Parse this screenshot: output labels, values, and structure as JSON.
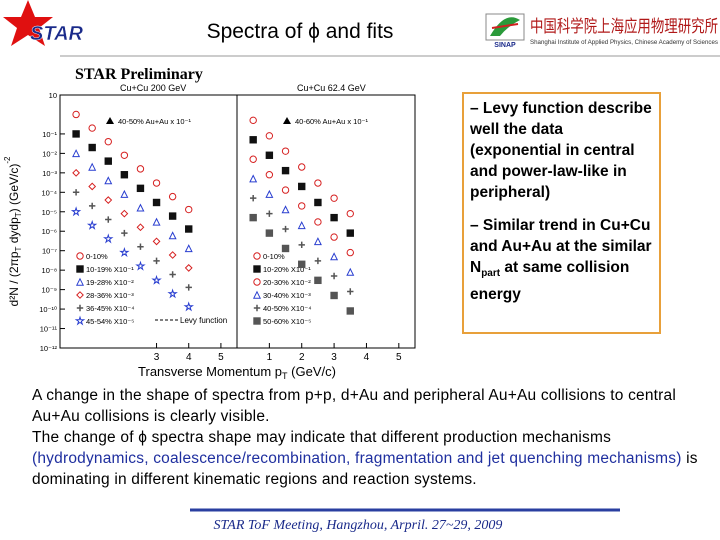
{
  "header": {
    "logo_text": "STAR",
    "title": "Spectra of ϕ and fits",
    "institute_cn": "中国科学院上海应用物理研究所",
    "institute_en": "Shanghai Institute of Applied Physics, Chinese Academy of Sciences",
    "institute_abbr": "SINAP"
  },
  "preliminary": "STAR Preliminary",
  "chart_data": [
    {
      "type": "scatter",
      "title": "Cu+Cu 200 GeV",
      "y_label_parts": [
        "d²N / (2πp",
        "T",
        " dydp",
        "T",
        ") (GeV/c)",
        "-2"
      ],
      "annotation": "40-50% Au+Au x 10⁻¹",
      "fit_label": "Levy function",
      "x": [
        0.5,
        1,
        1.5,
        2,
        2.5,
        3,
        3.5,
        4
      ],
      "series": [
        {
          "name": "0-10%",
          "color": "#d62020",
          "marker": "circle",
          "values": [
            1,
            0.2,
            0.04,
            0.008,
            0.0016,
            0.0003,
            6e-05,
            1.3e-05
          ]
        },
        {
          "name": "10-19% X10⁻¹",
          "color": "#111111",
          "marker": "square",
          "values": [
            0.1,
            0.02,
            0.004,
            0.0008,
            0.00016,
            3e-05,
            6e-06,
            1.3e-06
          ]
        },
        {
          "name": "19-28% X10⁻²",
          "color": "#2a3fd0",
          "marker": "triangle",
          "values": [
            0.01,
            0.002,
            0.0004,
            8e-05,
            1.6e-05,
            3e-06,
            6e-07,
            1.3e-07
          ]
        },
        {
          "name": "28-36% X10⁻³",
          "color": "#d62020",
          "marker": "diamond",
          "values": [
            0.001,
            0.0002,
            4e-05,
            8e-06,
            1.6e-06,
            3e-07,
            6e-08,
            1.3e-08
          ]
        },
        {
          "name": "36-45% X10⁻⁴",
          "color": "#555555",
          "marker": "cross",
          "values": [
            0.0001,
            2e-05,
            4e-06,
            8e-07,
            1.6e-07,
            3e-08,
            6e-09,
            1.3e-09
          ]
        },
        {
          "name": "45-54% X10⁻⁵",
          "color": "#2a3fd0",
          "marker": "star",
          "values": [
            1e-05,
            2e-06,
            4e-07,
            8e-08,
            1.6e-08,
            3e-09,
            6e-10,
            1.3e-10
          ]
        }
      ],
      "xlim": [
        0,
        5.5
      ],
      "xticks": [
        3,
        4,
        5
      ],
      "log_y": true,
      "ylim": [
        1e-12,
        10
      ],
      "yticks": [
        {
          "value": 10,
          "label": "10"
        },
        {
          "value": 0.1,
          "label": "10⁻¹"
        },
        {
          "value": 0.01,
          "label": "10⁻²"
        },
        {
          "value": 0.001,
          "label": "10⁻³"
        },
        {
          "value": 0.0001,
          "label": "10⁻⁴"
        },
        {
          "value": 1e-05,
          "label": "10⁻⁵"
        },
        {
          "value": 1e-06,
          "label": "10⁻⁶"
        },
        {
          "value": 1e-07,
          "label": "10⁻⁷"
        },
        {
          "value": 1e-08,
          "label": "10⁻⁸"
        },
        {
          "value": 1e-09,
          "label": "10⁻⁹"
        },
        {
          "value": 1e-10,
          "label": "10⁻¹⁰"
        },
        {
          "value": 1e-11,
          "label": "10⁻¹¹"
        },
        {
          "value": 1e-12,
          "label": "10⁻¹²"
        }
      ]
    },
    {
      "type": "scatter",
      "title": "Cu+Cu 62.4 GeV",
      "x_label_parts": [
        "Transverse Momentum p",
        "T",
        " (GeV/c)"
      ],
      "annotation": "40-60% Au+Au x 10⁻¹",
      "x": [
        0.5,
        1,
        1.5,
        2,
        2.5,
        3,
        3.5
      ],
      "series": [
        {
          "name": "0-10%",
          "color": "#d62020",
          "marker": "circle",
          "values": [
            0.5,
            0.08,
            0.013,
            0.002,
            0.0003,
            5e-05,
            8e-06
          ]
        },
        {
          "name": "10-20% X10⁻¹",
          "color": "#111111",
          "marker": "square",
          "values": [
            0.05,
            0.008,
            0.0013,
            0.0002,
            3e-05,
            5e-06,
            8e-07
          ]
        },
        {
          "name": "20-30% X10⁻²",
          "color": "#d62020",
          "marker": "circle",
          "values": [
            0.005,
            0.0008,
            0.00013,
            2e-05,
            3e-06,
            5e-07,
            8e-08
          ]
        },
        {
          "name": "30-40% X10⁻³",
          "color": "#2a3fd0",
          "marker": "triangle",
          "values": [
            0.0005,
            8e-05,
            1.3e-05,
            2e-06,
            3e-07,
            5e-08,
            8e-09
          ]
        },
        {
          "name": "40-50% X10⁻⁴",
          "color": "#555555",
          "marker": "cross",
          "values": [
            5e-05,
            8e-06,
            1.3e-06,
            2e-07,
            3e-08,
            5e-09,
            8e-10
          ]
        },
        {
          "name": "50-60% X10⁻⁵",
          "color": "#555555",
          "marker": "square",
          "values": [
            5e-06,
            8e-07,
            1.3e-07,
            2e-08,
            3e-09,
            5e-10,
            8e-11
          ]
        }
      ],
      "xlim": [
        0,
        5.5
      ],
      "xticks": [
        1,
        2,
        3,
        4,
        5
      ],
      "log_y": true,
      "ylim": [
        1e-12,
        10
      ]
    }
  ],
  "bullets": [
    {
      "text": "– Levy function describe well the data (exponential in central and power-law-like in peripheral)"
    },
    {
      "parts": [
        "– Similar trend in Cu+Cu and Au+Au at the similar N",
        "part",
        " at same collision energy"
      ]
    }
  ],
  "body": [
    {
      "text": "A change in the shape of spectra from p+p, d+Au and peripheral Au+Au collisions to central Au+Au collisions is clearly visible."
    },
    {
      "parts": [
        "The change of ϕ spectra shape may indicate that different production mechanisms ",
        "(hydrodynamics, coalescence/recombination, fragmentation and jet quenching mechanisms)",
        " is dominating in different kinematic regions and reaction systems."
      ]
    }
  ],
  "footer": "STAR ToF Meeting, Hangzhou, Arpril. 27~29, 2009"
}
